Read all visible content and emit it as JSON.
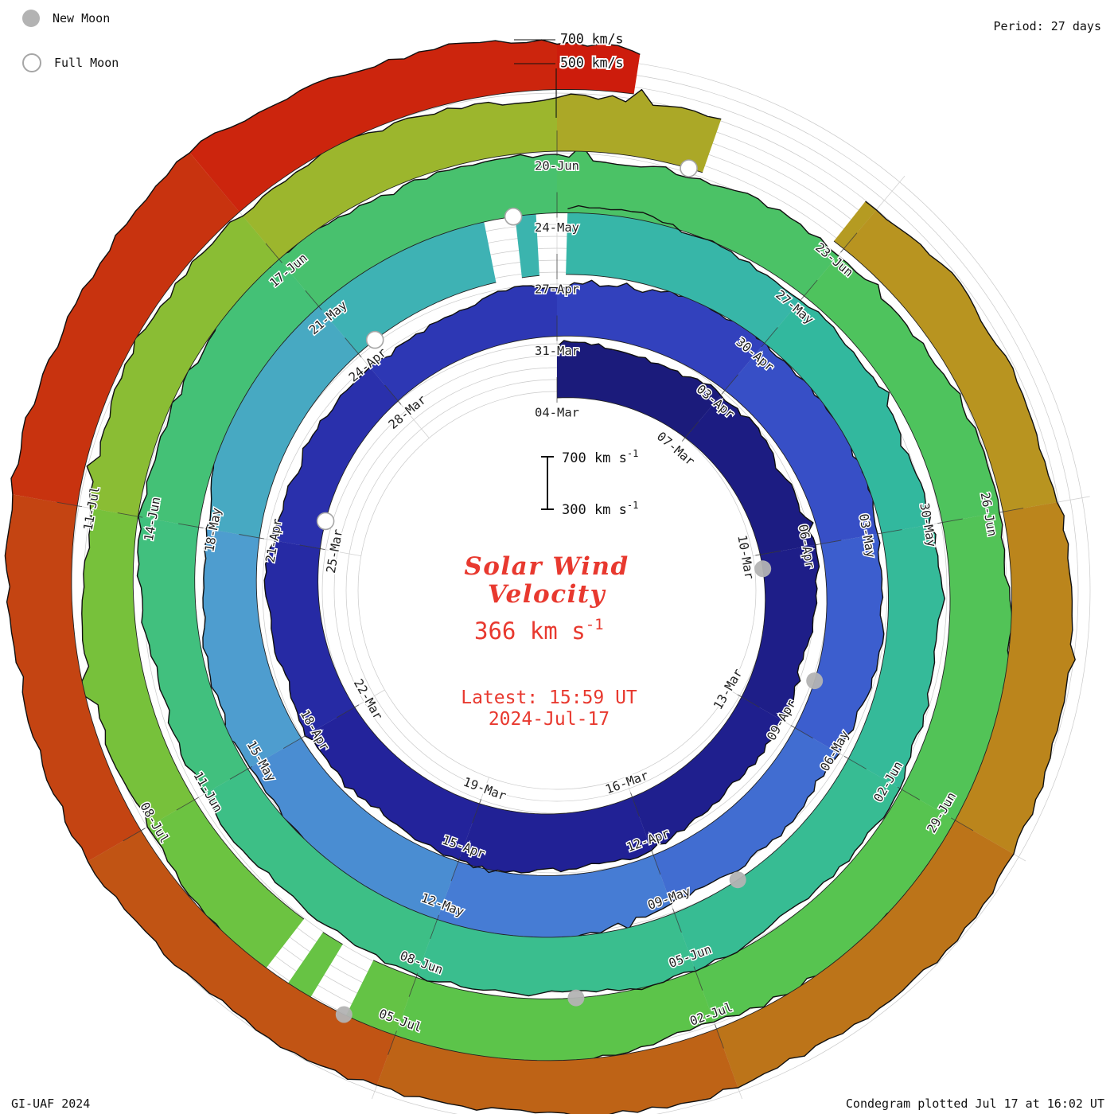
{
  "legend": {
    "new_moon": "New Moon",
    "full_moon": "Full Moon"
  },
  "header": {
    "period": "Period: 27 days"
  },
  "footer": {
    "credit": "GI-UAF 2024",
    "plotted": "Condegram plotted Jul 17 at 16:02 UT"
  },
  "outer_scale": {
    "label_700": "700 km/s",
    "label_500": "500 km/s"
  },
  "center": {
    "title_line1": "Solar Wind",
    "title_line2": "Velocity",
    "value_base": "366 km s",
    "value_sup": "-1",
    "latest_line1": "Latest: 15:59 UT",
    "latest_line2": "2024-Jul-17",
    "scale_top_base": "700 km s",
    "scale_bottom_base": "300 km s",
    "scale_sup": "-1"
  },
  "colors": {
    "accent_red": "#e8392f",
    "trace": "#101010",
    "grid": "#c9c9c9",
    "spoke": "#d2d2d2",
    "moon_gray": "#b3b3b3"
  },
  "chart_data": {
    "type": "area",
    "layout": "polar spiral condegram, time runs clockwise from top, one ring = 27 days",
    "title": "Solar Wind Velocity",
    "units": "km/s",
    "current_value_kms": 366,
    "latest": "15:59 UT 2024-Jul-17",
    "period_days": 27,
    "start_date": "2024-03-04",
    "end_day_offset": 135.66,
    "radial_axis": {
      "min_kms": 300,
      "max_kms": 700,
      "outer_ring_labels": [
        "700 km/s",
        "500 km/s"
      ]
    },
    "date_labels": [
      {
        "label": "04-Mar",
        "day": 0
      },
      {
        "label": "07-Mar",
        "day": 3
      },
      {
        "label": "10-Mar",
        "day": 6
      },
      {
        "label": "13-Mar",
        "day": 9
      },
      {
        "label": "16-Mar",
        "day": 12
      },
      {
        "label": "19-Mar",
        "day": 15
      },
      {
        "label": "22-Mar",
        "day": 18
      },
      {
        "label": "25-Mar",
        "day": 21
      },
      {
        "label": "28-Mar",
        "day": 24
      },
      {
        "label": "31-Mar",
        "day": 27
      },
      {
        "label": "03-Apr",
        "day": 30
      },
      {
        "label": "06-Apr",
        "day": 33
      },
      {
        "label": "09-Apr",
        "day": 36
      },
      {
        "label": "12-Apr",
        "day": 39
      },
      {
        "label": "15-Apr",
        "day": 42
      },
      {
        "label": "18-Apr",
        "day": 45
      },
      {
        "label": "21-Apr",
        "day": 48
      },
      {
        "label": "24-Apr",
        "day": 51
      },
      {
        "label": "27-Apr",
        "day": 54
      },
      {
        "label": "30-Apr",
        "day": 57
      },
      {
        "label": "03-May",
        "day": 60
      },
      {
        "label": "06-May",
        "day": 63
      },
      {
        "label": "09-May",
        "day": 66
      },
      {
        "label": "12-May",
        "day": 69
      },
      {
        "label": "15-May",
        "day": 72
      },
      {
        "label": "18-May",
        "day": 75
      },
      {
        "label": "21-May",
        "day": 78
      },
      {
        "label": "24-May",
        "day": 81
      },
      {
        "label": "27-May",
        "day": 84
      },
      {
        "label": "30-May",
        "day": 87
      },
      {
        "label": "02-Jun",
        "day": 90
      },
      {
        "label": "05-Jun",
        "day": 93
      },
      {
        "label": "08-Jun",
        "day": 96
      },
      {
        "label": "11-Jun",
        "day": 99
      },
      {
        "label": "14-Jun",
        "day": 102
      },
      {
        "label": "17-Jun",
        "day": 105
      },
      {
        "label": "20-Jun",
        "day": 108
      },
      {
        "label": "23-Jun",
        "day": 111
      },
      {
        "label": "26-Jun",
        "day": 114
      },
      {
        "label": "29-Jun",
        "day": 117
      },
      {
        "label": "02-Jul",
        "day": 120
      },
      {
        "label": "05-Jul",
        "day": 123
      },
      {
        "label": "08-Jul",
        "day": 126
      },
      {
        "label": "11-Jul",
        "day": 129
      }
    ],
    "velocity_kms": {
      "day_step": 3,
      "values": [
        430,
        470,
        420,
        380,
        440,
        500,
        450,
        390,
        360,
        420,
        540,
        490,
        420,
        450,
        580,
        510,
        440,
        640,
        560,
        470,
        420,
        460,
        510,
        470,
        420,
        470,
        530,
        480,
        430,
        500,
        550,
        480,
        600,
        460,
        420,
        500,
        470,
        430,
        480,
        560,
        500,
        450,
        480,
        560,
        620,
        400
      ]
    },
    "gaps_days": [
      [
        53.2,
        53.45
      ],
      [
        53.8,
        54.05
      ],
      [
        96.55,
        96.75
      ],
      [
        97.15,
        97.3
      ],
      [
        109.55,
        110.85
      ]
    ],
    "color_stops": [
      {
        "day": 0,
        "hex": "#1a1a78"
      },
      {
        "day": 16,
        "hex": "#22229a"
      },
      {
        "day": 27,
        "hex": "#2f3ab8"
      },
      {
        "day": 34,
        "hex": "#3b5bce"
      },
      {
        "day": 41,
        "hex": "#477fd4"
      },
      {
        "day": 47,
        "hex": "#4fa0cf"
      },
      {
        "day": 52,
        "hex": "#3eb2b4"
      },
      {
        "day": 58,
        "hex": "#32b89f"
      },
      {
        "day": 68,
        "hex": "#3abe8d"
      },
      {
        "day": 78,
        "hex": "#46c172"
      },
      {
        "day": 86,
        "hex": "#4fc35c"
      },
      {
        "day": 94,
        "hex": "#5ac44b"
      },
      {
        "day": 100,
        "hex": "#74c23c"
      },
      {
        "day": 106,
        "hex": "#99b92e"
      },
      {
        "day": 110,
        "hex": "#b4a023"
      },
      {
        "day": 115,
        "hex": "#bb881d"
      },
      {
        "day": 120,
        "hex": "#bd6b17"
      },
      {
        "day": 126,
        "hex": "#c24c13"
      },
      {
        "day": 131,
        "hex": "#c9300f"
      },
      {
        "day": 136,
        "hex": "#ce190b"
      }
    ],
    "new_moons_day": [
      6.3,
      35.2,
      65.1,
      94.3,
      123.5
    ],
    "full_moons_day": [
      21.5,
      51.3,
      80.5,
      109.3
    ]
  }
}
